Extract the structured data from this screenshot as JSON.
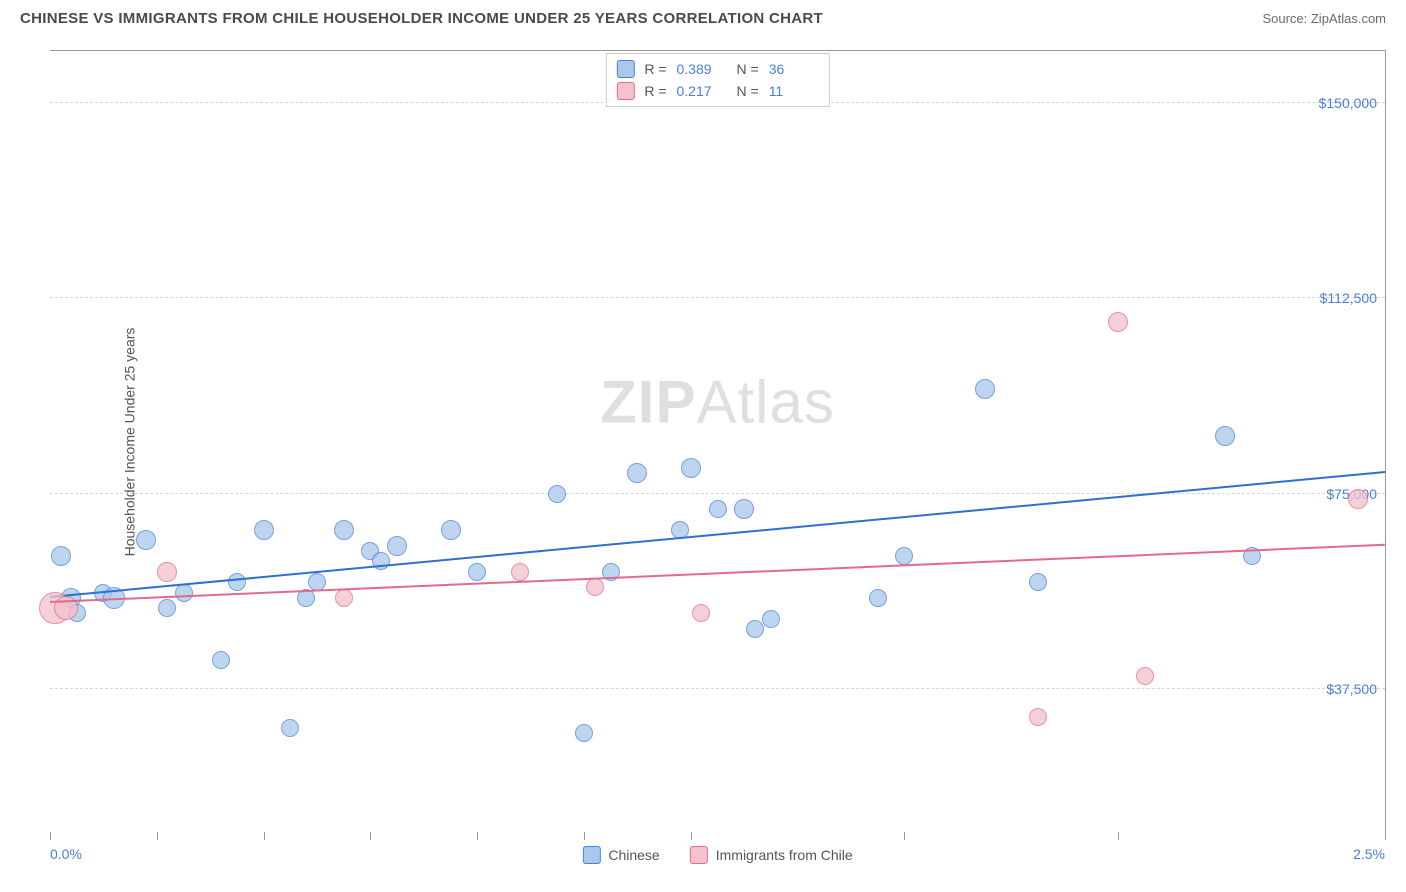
{
  "title": "CHINESE VS IMMIGRANTS FROM CHILE HOUSEHOLDER INCOME UNDER 25 YEARS CORRELATION CHART",
  "source": "Source: ZipAtlas.com",
  "y_axis_label": "Householder Income Under 25 years",
  "watermark": {
    "bold": "ZIP",
    "rest": "Atlas"
  },
  "chart": {
    "type": "scatter",
    "xlim": [
      0.0,
      2.5
    ],
    "ylim": [
      10000,
      160000
    ],
    "background_color": "#ffffff",
    "grid_color": "#d5d5d5",
    "axis_color": "#999999",
    "y_ticks": [
      {
        "v": 37500,
        "label": "$37,500"
      },
      {
        "v": 75000,
        "label": "$75,000"
      },
      {
        "v": 112500,
        "label": "$112,500"
      },
      {
        "v": 150000,
        "label": "$150,000"
      }
    ],
    "x_ticks": [
      0.0,
      0.2,
      0.4,
      0.6,
      0.8,
      1.0,
      1.2,
      1.6,
      2.0,
      2.5
    ],
    "x_labels": [
      {
        "v": 0.0,
        "label": "0.0%"
      },
      {
        "v": 2.5,
        "label": "2.5%"
      }
    ],
    "series": [
      {
        "name": "Chinese",
        "fill": "#a9c8ec",
        "stroke": "#4a7fd8",
        "trend_color": "#2f6fd0",
        "opacity": 0.75,
        "marker_radius": 9,
        "r_value": "0.389",
        "n_value": "36",
        "trend": {
          "x1": 0.0,
          "y1": 55000,
          "x2": 2.5,
          "y2": 79000
        },
        "points": [
          {
            "x": 0.02,
            "y": 63000,
            "r": 10
          },
          {
            "x": 0.04,
            "y": 55000,
            "r": 10
          },
          {
            "x": 0.05,
            "y": 52000,
            "r": 9
          },
          {
            "x": 0.1,
            "y": 56000,
            "r": 9
          },
          {
            "x": 0.12,
            "y": 55000,
            "r": 11
          },
          {
            "x": 0.18,
            "y": 66000,
            "r": 10
          },
          {
            "x": 0.22,
            "y": 53000,
            "r": 9
          },
          {
            "x": 0.25,
            "y": 56000,
            "r": 9
          },
          {
            "x": 0.32,
            "y": 43000,
            "r": 9
          },
          {
            "x": 0.35,
            "y": 58000,
            "r": 9
          },
          {
            "x": 0.4,
            "y": 68000,
            "r": 10
          },
          {
            "x": 0.45,
            "y": 30000,
            "r": 9
          },
          {
            "x": 0.48,
            "y": 55000,
            "r": 9
          },
          {
            "x": 0.5,
            "y": 58000,
            "r": 9
          },
          {
            "x": 0.55,
            "y": 68000,
            "r": 10
          },
          {
            "x": 0.6,
            "y": 64000,
            "r": 9
          },
          {
            "x": 0.62,
            "y": 62000,
            "r": 9
          },
          {
            "x": 0.65,
            "y": 65000,
            "r": 10
          },
          {
            "x": 0.75,
            "y": 68000,
            "r": 10
          },
          {
            "x": 0.8,
            "y": 60000,
            "r": 9
          },
          {
            "x": 0.95,
            "y": 75000,
            "r": 9
          },
          {
            "x": 1.0,
            "y": 29000,
            "r": 9
          },
          {
            "x": 1.05,
            "y": 60000,
            "r": 9
          },
          {
            "x": 1.1,
            "y": 79000,
            "r": 10
          },
          {
            "x": 1.18,
            "y": 68000,
            "r": 9
          },
          {
            "x": 1.2,
            "y": 80000,
            "r": 10
          },
          {
            "x": 1.25,
            "y": 72000,
            "r": 9
          },
          {
            "x": 1.3,
            "y": 72000,
            "r": 10
          },
          {
            "x": 1.32,
            "y": 49000,
            "r": 9
          },
          {
            "x": 1.35,
            "y": 51000,
            "r": 9
          },
          {
            "x": 1.55,
            "y": 55000,
            "r": 9
          },
          {
            "x": 1.6,
            "y": 63000,
            "r": 9
          },
          {
            "x": 1.75,
            "y": 95000,
            "r": 10
          },
          {
            "x": 1.85,
            "y": 58000,
            "r": 9
          },
          {
            "x": 2.2,
            "y": 86000,
            "r": 10
          },
          {
            "x": 2.25,
            "y": 63000,
            "r": 9
          }
        ]
      },
      {
        "name": "Immigrants from Chile",
        "fill": "#f4c1cd",
        "stroke": "#e06b8b",
        "trend_color": "#e06b8b",
        "opacity": 0.75,
        "marker_radius": 9,
        "r_value": "0.217",
        "n_value": "11",
        "trend": {
          "x1": 0.0,
          "y1": 54000,
          "x2": 2.5,
          "y2": 65000
        },
        "points": [
          {
            "x": 0.01,
            "y": 53000,
            "r": 16
          },
          {
            "x": 0.03,
            "y": 53000,
            "r": 12
          },
          {
            "x": 0.22,
            "y": 60000,
            "r": 10
          },
          {
            "x": 0.55,
            "y": 55000,
            "r": 9
          },
          {
            "x": 0.88,
            "y": 60000,
            "r": 9
          },
          {
            "x": 1.02,
            "y": 57000,
            "r": 9
          },
          {
            "x": 1.22,
            "y": 52000,
            "r": 9
          },
          {
            "x": 1.85,
            "y": 32000,
            "r": 9
          },
          {
            "x": 2.0,
            "y": 108000,
            "r": 10
          },
          {
            "x": 2.05,
            "y": 40000,
            "r": 9
          },
          {
            "x": 2.45,
            "y": 74000,
            "r": 10
          }
        ]
      }
    ],
    "legend_top_labels": {
      "r": "R =",
      "n": "N ="
    },
    "legend_bottom": [
      "Chinese",
      "Immigrants from Chile"
    ]
  }
}
